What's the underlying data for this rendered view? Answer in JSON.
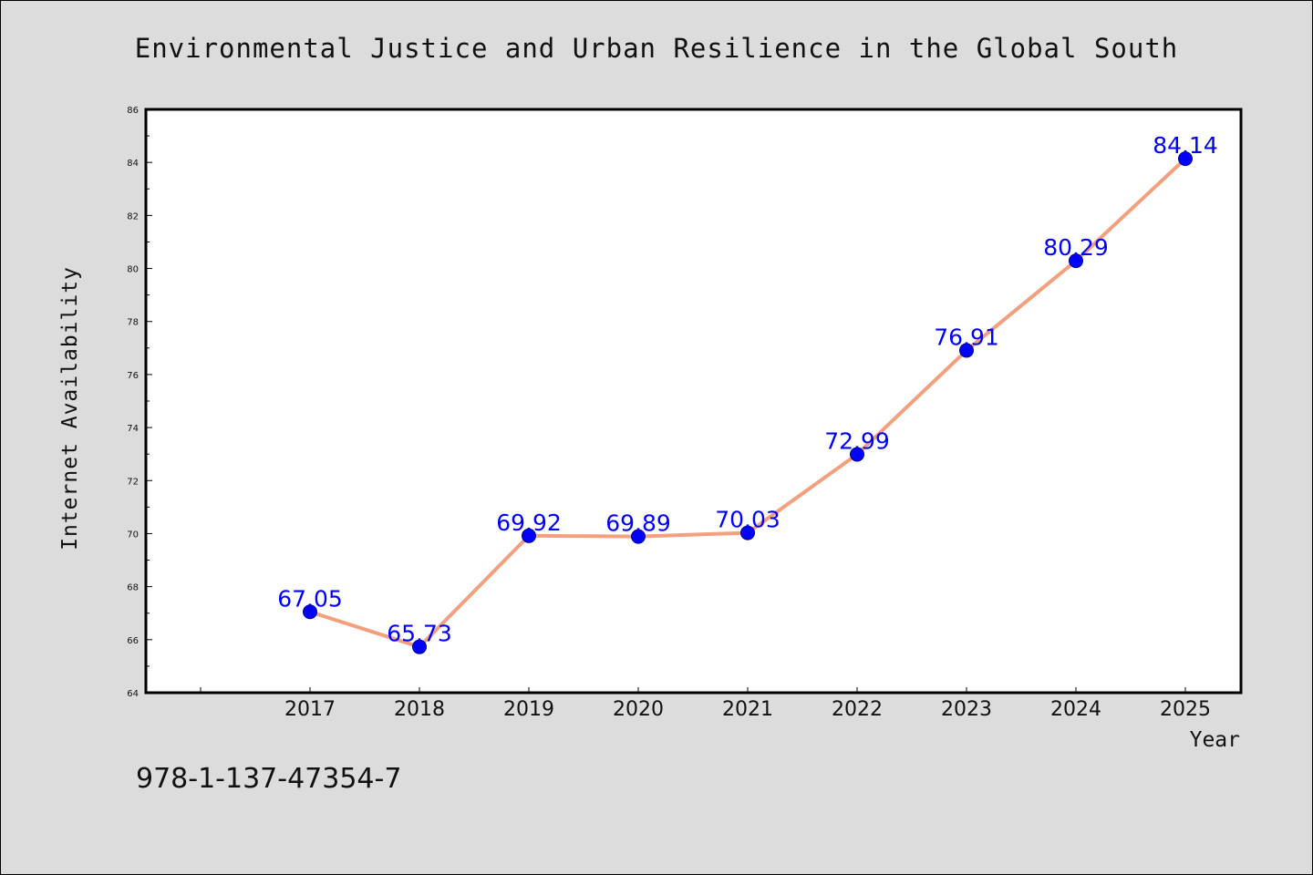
{
  "chart_data": {
    "type": "line",
    "title": "Environmental Justice and Urban Resilience in the Global South",
    "xlabel": "Year",
    "ylabel": "Internet Availability",
    "categories": [
      "2017",
      "2018",
      "2019",
      "2020",
      "2021",
      "2022",
      "2023",
      "2024",
      "2025"
    ],
    "values": [
      67.05,
      65.73,
      69.92,
      69.89,
      70.03,
      72.99,
      76.91,
      80.29,
      84.14
    ],
    "data_labels": [
      "67.05",
      "65.73",
      "69.92",
      "69.89",
      "70.03",
      "72.99",
      "76.91",
      "80.29",
      "84.14"
    ],
    "ylim": [
      64,
      86
    ],
    "yticks": [
      "64",
      "66",
      "68",
      "70",
      "72",
      "74",
      "76",
      "78",
      "80",
      "82",
      "84",
      "86"
    ],
    "grid": false,
    "legend": false,
    "line_color": "#f4a07f",
    "marker_color": "#0000ff",
    "label_color": "#0000ff"
  },
  "footer_note": "978-1-137-47354-7"
}
